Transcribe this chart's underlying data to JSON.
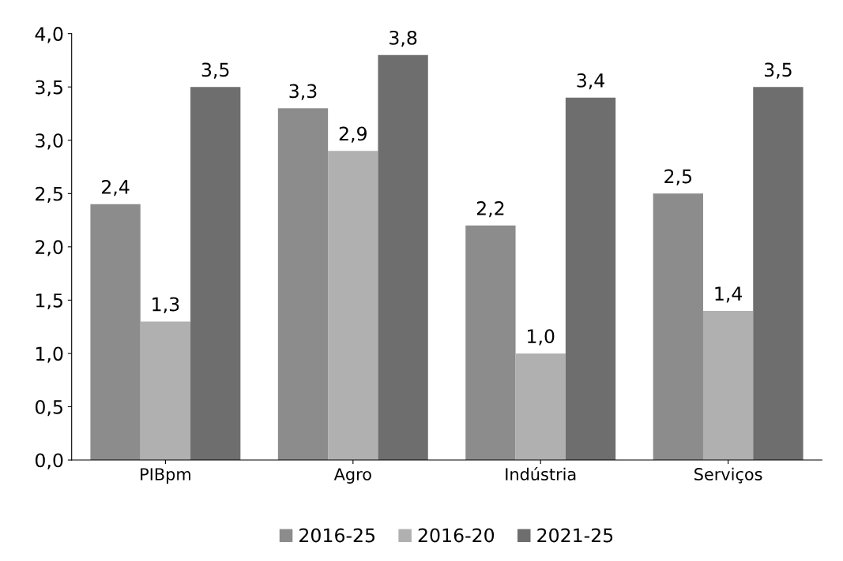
{
  "chart_data": {
    "type": "bar",
    "categories": [
      "PIBpm",
      "Agro",
      "Indústria",
      "Serviços"
    ],
    "series": [
      {
        "name": "2016-25",
        "color": "#8c8c8c",
        "values": [
          2.4,
          3.3,
          2.2,
          2.5
        ],
        "value_labels": [
          "2,4",
          "3,3",
          "2,2",
          "2,5"
        ]
      },
      {
        "name": "2016-20",
        "color": "#b0b0b0",
        "values": [
          1.3,
          2.9,
          1.0,
          1.4
        ],
        "value_labels": [
          "1,3",
          "2,9",
          "1,0",
          "1,4"
        ]
      },
      {
        "name": "2021-25",
        "color": "#6e6e6e",
        "values": [
          3.5,
          3.8,
          3.4,
          3.5
        ],
        "value_labels": [
          "3,5",
          "3,8",
          "3,4",
          "3,5"
        ]
      }
    ],
    "ylim": [
      0,
      4
    ],
    "yticks": [
      {
        "value": 0,
        "label": "0,0"
      },
      {
        "value": 0.5,
        "label": "0,5"
      },
      {
        "value": 1,
        "label": "1,0"
      },
      {
        "value": 1.5,
        "label": "1,5"
      },
      {
        "value": 2,
        "label": "2,0"
      },
      {
        "value": 2.5,
        "label": "2,5"
      },
      {
        "value": 3,
        "label": "3,0"
      },
      {
        "value": 3.5,
        "label": "3,5"
      },
      {
        "value": 4,
        "label": "4,0"
      }
    ],
    "grid": false,
    "legend": "bottom"
  }
}
